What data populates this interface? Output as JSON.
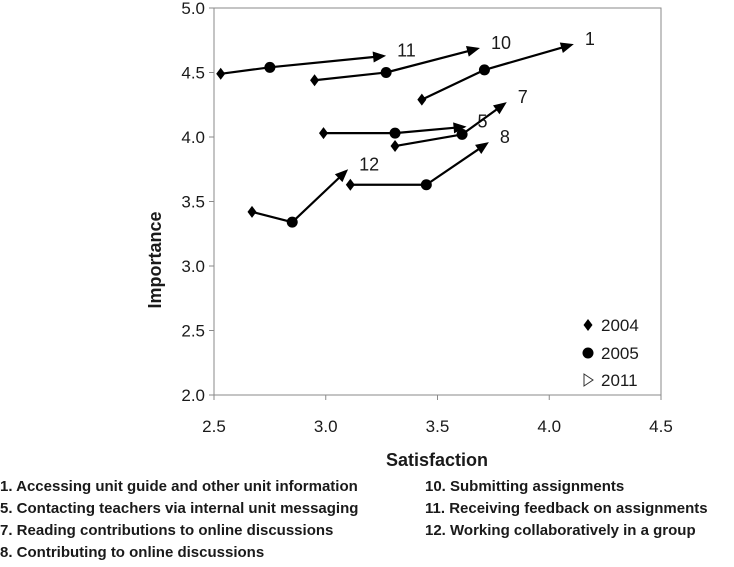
{
  "chart_data": {
    "type": "scatter",
    "xlabel": "Satisfaction",
    "ylabel": "Importance",
    "xlim": [
      2.5,
      4.5
    ],
    "ylim": [
      2.0,
      5.0
    ],
    "xticks": [
      "2.5",
      "3.0",
      "3.5",
      "4.0",
      "4.5"
    ],
    "yticks": [
      "2.0",
      "2.5",
      "3.0",
      "3.5",
      "4.0",
      "4.5",
      "5.0"
    ],
    "grid": false,
    "legend": {
      "placement": "bottom-right",
      "entries": [
        {
          "label": "2004",
          "marker": "diamond"
        },
        {
          "label": "2005",
          "marker": "circle"
        },
        {
          "label": "2011",
          "marker": "open-triangle"
        }
      ]
    },
    "series": [
      {
        "label": "1",
        "points": [
          {
            "year": "2004",
            "x": 3.43,
            "y": 4.29
          },
          {
            "year": "2005",
            "x": 3.71,
            "y": 4.52
          },
          {
            "year": "2011",
            "x": 4.11,
            "y": 4.72
          }
        ]
      },
      {
        "label": "5",
        "points": [
          {
            "year": "2004",
            "x": 2.99,
            "y": 4.03
          },
          {
            "year": "2005",
            "x": 3.31,
            "y": 4.03
          },
          {
            "year": "2011",
            "x": 3.63,
            "y": 4.08
          }
        ]
      },
      {
        "label": "7",
        "points": [
          {
            "year": "2004",
            "x": 3.31,
            "y": 3.93
          },
          {
            "year": "2005",
            "x": 3.61,
            "y": 4.02
          },
          {
            "year": "2011",
            "x": 3.81,
            "y": 4.27
          }
        ]
      },
      {
        "label": "8",
        "points": [
          {
            "year": "2004",
            "x": 3.11,
            "y": 3.63
          },
          {
            "year": "2005",
            "x": 3.45,
            "y": 3.63
          },
          {
            "year": "2011",
            "x": 3.73,
            "y": 3.96
          }
        ]
      },
      {
        "label": "10",
        "points": [
          {
            "year": "2004",
            "x": 2.95,
            "y": 4.44
          },
          {
            "year": "2005",
            "x": 3.27,
            "y": 4.5
          },
          {
            "year": "2011",
            "x": 3.69,
            "y": 4.69
          }
        ]
      },
      {
        "label": "11",
        "points": [
          {
            "year": "2004",
            "x": 2.53,
            "y": 4.49
          },
          {
            "year": "2005",
            "x": 2.75,
            "y": 4.54
          },
          {
            "year": "2011",
            "x": 3.27,
            "y": 4.63
          }
        ]
      },
      {
        "label": "12",
        "points": [
          {
            "year": "2004",
            "x": 2.67,
            "y": 3.42
          },
          {
            "year": "2005",
            "x": 2.85,
            "y": 3.34
          },
          {
            "year": "2011",
            "x": 3.1,
            "y": 3.75
          }
        ]
      }
    ]
  },
  "footnotes": {
    "left": [
      "1. Accessing unit guide and other unit information",
      "5. Contacting teachers via internal unit messaging",
      "7. Reading contributions to online discussions",
      "8. Contributing to online discussions"
    ],
    "right": [
      "10. Submitting assignments",
      "11. Receiving feedback on assignments",
      "12. Working collaboratively in a group"
    ]
  }
}
